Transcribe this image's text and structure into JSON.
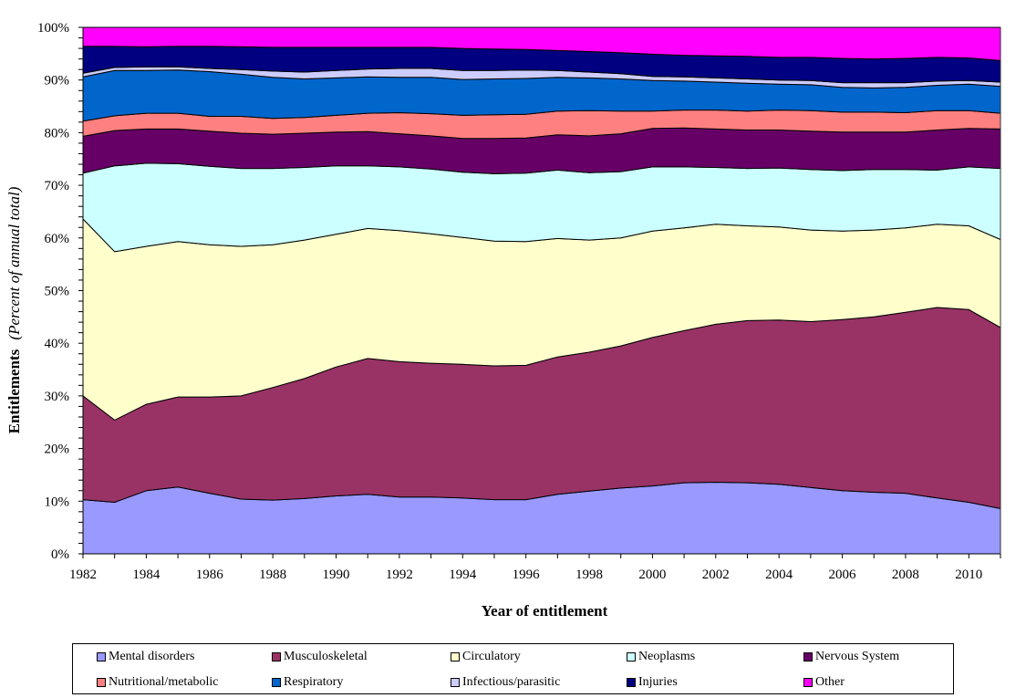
{
  "chart_data": {
    "type": "area",
    "stacked": true,
    "normalized": true,
    "title": "",
    "xlabel": "Year of entitlement",
    "ylabel_bold": "Entitlements",
    "ylabel_italic": "(Percent of annual total)",
    "ylim": [
      0,
      100
    ],
    "yticks": [
      "0%",
      "10%",
      "20%",
      "30%",
      "40%",
      "50%",
      "60%",
      "70%",
      "80%",
      "90%",
      "100%"
    ],
    "xticks": [
      "1982",
      "1984",
      "1986",
      "1988",
      "1990",
      "1992",
      "1994",
      "1996",
      "1998",
      "2000",
      "2002",
      "2004",
      "2006",
      "2008",
      "2010"
    ],
    "grid": false,
    "legend_position": "bottom",
    "x": [
      1982,
      1983,
      1984,
      1985,
      1986,
      1987,
      1988,
      1989,
      1990,
      1991,
      1992,
      1993,
      1994,
      1995,
      1996,
      1997,
      1998,
      1999,
      2000,
      2001,
      2002,
      2003,
      2004,
      2005,
      2006,
      2007,
      2008,
      2009,
      2010,
      2011
    ],
    "series": [
      {
        "name": "Mental disorders",
        "color": "#9999FF",
        "values": [
          10.3,
          9.8,
          12.0,
          12.7,
          11.5,
          10.4,
          10.2,
          10.5,
          11.0,
          11.3,
          10.8,
          10.8,
          10.6,
          10.3,
          10.3,
          11.3,
          11.9,
          12.5,
          12.9,
          13.5,
          13.6,
          13.5,
          13.2,
          12.6,
          12.0,
          11.7,
          11.5,
          10.6,
          9.8,
          8.6
        ]
      },
      {
        "name": "Musculoskeletal",
        "color": "#993366",
        "values": [
          19.7,
          15.6,
          16.4,
          17.1,
          18.3,
          19.6,
          21.4,
          22.8,
          24.5,
          25.8,
          25.7,
          25.4,
          25.4,
          25.4,
          25.5,
          26.1,
          26.4,
          27.0,
          28.2,
          28.9,
          30.0,
          30.8,
          31.2,
          31.5,
          32.5,
          33.3,
          34.4,
          36.2,
          36.6,
          34.4
        ]
      },
      {
        "name": "Circulatory",
        "color": "#FFFFCC",
        "values": [
          33.6,
          32.0,
          30.0,
          29.5,
          28.9,
          28.4,
          27.1,
          26.3,
          25.2,
          24.7,
          24.9,
          24.6,
          24.1,
          23.7,
          23.5,
          22.5,
          21.3,
          20.5,
          20.2,
          19.5,
          19.0,
          18.0,
          17.7,
          17.4,
          16.8,
          16.5,
          16.0,
          15.8,
          15.9,
          16.7
        ]
      },
      {
        "name": "Neoplasms",
        "color": "#CCFFFF",
        "values": [
          8.7,
          16.3,
          15.8,
          14.8,
          14.9,
          14.8,
          14.5,
          13.8,
          13.0,
          11.9,
          12.1,
          12.3,
          12.4,
          12.8,
          13.0,
          13.0,
          12.8,
          12.6,
          12.2,
          11.6,
          10.8,
          10.9,
          11.2,
          11.5,
          11.5,
          11.5,
          11.1,
          10.3,
          11.2,
          13.5
        ]
      },
      {
        "name": "Nervous System",
        "color": "#660066",
        "values": [
          7.0,
          6.7,
          6.5,
          6.6,
          6.7,
          6.7,
          6.5,
          6.5,
          6.4,
          6.5,
          6.3,
          6.3,
          6.4,
          6.7,
          6.7,
          6.7,
          7.0,
          7.2,
          7.3,
          7.4,
          7.3,
          7.3,
          7.2,
          7.3,
          7.3,
          7.1,
          7.1,
          7.6,
          7.3,
          7.5
        ]
      },
      {
        "name": "Nutritional/metabolic",
        "color": "#FF8080",
        "values": [
          2.9,
          2.8,
          3.0,
          3.0,
          2.8,
          3.2,
          3.0,
          3.0,
          3.2,
          3.5,
          4.0,
          4.2,
          4.4,
          4.5,
          4.5,
          4.5,
          4.8,
          4.3,
          3.3,
          3.4,
          3.6,
          3.6,
          3.8,
          3.9,
          3.8,
          3.8,
          3.7,
          3.7,
          3.4,
          3.0
        ]
      },
      {
        "name": "Respiratory",
        "color": "#0066CC",
        "values": [
          8.4,
          8.6,
          8.1,
          8.2,
          8.5,
          8.0,
          7.8,
          7.3,
          7.1,
          6.9,
          6.7,
          6.9,
          6.8,
          6.8,
          6.8,
          6.4,
          6.2,
          6.1,
          5.8,
          5.5,
          5.3,
          5.3,
          4.9,
          4.9,
          4.7,
          4.6,
          4.8,
          4.8,
          5.0,
          5.1
        ]
      },
      {
        "name": "Infectious/parasitic",
        "color": "#CCCCFF",
        "values": [
          0.7,
          0.6,
          0.7,
          0.6,
          0.6,
          0.9,
          1.2,
          1.3,
          1.4,
          1.5,
          1.7,
          1.7,
          1.7,
          1.6,
          1.6,
          1.3,
          1.1,
          1.0,
          0.8,
          0.8,
          0.8,
          0.8,
          0.8,
          0.8,
          0.9,
          1.0,
          0.9,
          0.8,
          0.7,
          0.8
        ]
      },
      {
        "name": "Injuries",
        "color": "#000080",
        "values": [
          5.1,
          4.0,
          3.8,
          3.9,
          4.2,
          4.3,
          4.5,
          4.7,
          4.4,
          4.1,
          4.0,
          4.0,
          4.2,
          4.1,
          3.9,
          3.8,
          3.9,
          4.0,
          4.2,
          4.1,
          4.2,
          4.3,
          4.3,
          4.4,
          4.6,
          4.5,
          4.6,
          4.5,
          4.3,
          4.1
        ]
      },
      {
        "name": "Other",
        "color": "#FF00FF",
        "values": [
          3.6,
          3.6,
          3.7,
          3.6,
          3.6,
          3.7,
          3.8,
          3.8,
          3.8,
          3.8,
          3.8,
          3.8,
          4.0,
          4.1,
          4.2,
          4.4,
          4.6,
          4.8,
          5.1,
          5.3,
          5.4,
          5.5,
          5.7,
          5.7,
          5.9,
          6.0,
          5.9,
          5.7,
          5.8,
          6.3
        ]
      }
    ]
  }
}
